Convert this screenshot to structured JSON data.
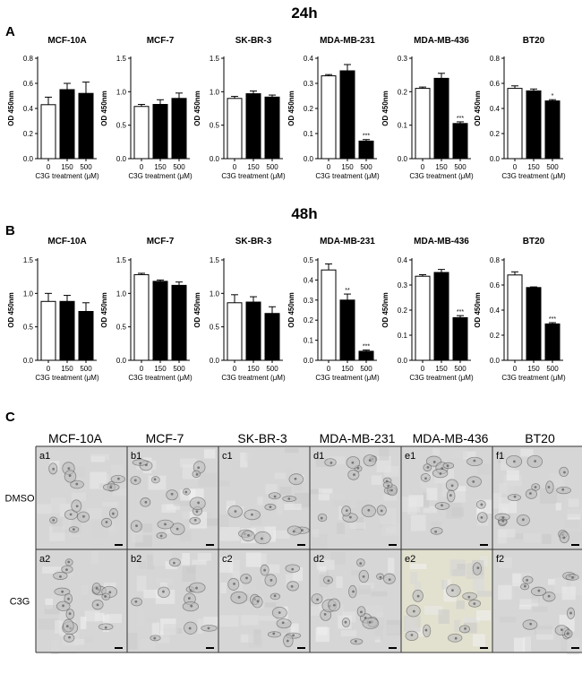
{
  "panels": {
    "A": {
      "letter": "A",
      "timepoint": "24h"
    },
    "B": {
      "letter": "B",
      "timepoint": "48h"
    },
    "C": {
      "letter": "C",
      "columns": [
        "MCF-10A",
        "MCF-7",
        "SK-BR-3",
        "MDA-MB-231",
        "MDA-MB-436",
        "BT20"
      ],
      "rows": [
        "DMSO",
        "C3G"
      ],
      "cell_labels": [
        [
          "a1",
          "b1",
          "c1",
          "d1",
          "e1",
          "f1"
        ],
        [
          "a2",
          "b2",
          "c2",
          "d2",
          "e2",
          "f2"
        ]
      ]
    }
  },
  "chart_data": [
    {
      "type": "bar",
      "panel": "A",
      "title": "MCF-10A",
      "categories": [
        "0",
        "150",
        "500"
      ],
      "values": [
        0.43,
        0.55,
        0.52
      ],
      "errors": [
        0.06,
        0.05,
        0.09
      ],
      "significance": [
        "",
        "",
        ""
      ],
      "ylabel": "OD 450nm",
      "xlabel": "C3G treatment (μM)",
      "ylim": [
        0,
        0.8
      ],
      "yticks": [
        "0.0",
        "0.2",
        "0.4",
        "0.6",
        "0.8"
      ]
    },
    {
      "type": "bar",
      "panel": "A",
      "title": "MCF-7",
      "categories": [
        "0",
        "150",
        "500"
      ],
      "values": [
        0.78,
        0.81,
        0.9
      ],
      "errors": [
        0.03,
        0.07,
        0.08
      ],
      "significance": [
        "",
        "",
        ""
      ],
      "ylabel": "OD 450nm",
      "xlabel": "C3G treatment (μM)",
      "ylim": [
        0,
        1.5
      ],
      "yticks": [
        "0.0",
        "0.5",
        "1.0",
        "1.5"
      ]
    },
    {
      "type": "bar",
      "panel": "A",
      "title": "SK-BR-3",
      "categories": [
        "0",
        "150",
        "500"
      ],
      "values": [
        0.9,
        0.97,
        0.92
      ],
      "errors": [
        0.03,
        0.04,
        0.03
      ],
      "significance": [
        "",
        "",
        ""
      ],
      "ylabel": "OD 450nm",
      "xlabel": "C3G treatment (μM)",
      "ylim": [
        0,
        1.5
      ],
      "yticks": [
        "0.0",
        "0.5",
        "1.0",
        "1.5"
      ]
    },
    {
      "type": "bar",
      "panel": "A",
      "title": "MDA-MB-231",
      "categories": [
        "0",
        "150",
        "500"
      ],
      "values": [
        0.33,
        0.35,
        0.07
      ],
      "errors": [
        0.005,
        0.025,
        0.006
      ],
      "significance": [
        "",
        "",
        "***"
      ],
      "ylabel": "OD 450nm",
      "xlabel": "C3G treatment (μM)",
      "ylim": [
        0,
        0.4
      ],
      "yticks": [
        "0.0",
        "0.1",
        "0.2",
        "0.3",
        "0.4"
      ]
    },
    {
      "type": "bar",
      "panel": "A",
      "title": "MDA-MB-436",
      "categories": [
        "0",
        "150",
        "500"
      ],
      "values": [
        0.21,
        0.24,
        0.105
      ],
      "errors": [
        0.004,
        0.015,
        0.005
      ],
      "significance": [
        "",
        "",
        "***"
      ],
      "ylabel": "OD 450nm",
      "xlabel": "C3G treatment (μM)",
      "ylim": [
        0,
        0.3
      ],
      "yticks": [
        "0.0",
        "0.1",
        "0.2",
        "0.3"
      ]
    },
    {
      "type": "bar",
      "panel": "A",
      "title": "BT20",
      "categories": [
        "0",
        "150",
        "500"
      ],
      "values": [
        0.56,
        0.54,
        0.46
      ],
      "errors": [
        0.02,
        0.015,
        0.01
      ],
      "significance": [
        "",
        "",
        "*"
      ],
      "ylabel": "OD 450nm",
      "xlabel": "C3G treatment (μM)",
      "ylim": [
        0,
        0.8
      ],
      "yticks": [
        "0.0",
        "0.2",
        "0.4",
        "0.6",
        "0.8"
      ]
    },
    {
      "type": "bar",
      "panel": "B",
      "title": "MCF-10A",
      "categories": [
        "0",
        "150",
        "500"
      ],
      "values": [
        0.88,
        0.88,
        0.73
      ],
      "errors": [
        0.12,
        0.09,
        0.13
      ],
      "significance": [
        "",
        "",
        ""
      ],
      "ylabel": "OD 450nm",
      "xlabel": "C3G treatment (μM)",
      "ylim": [
        0,
        1.5
      ],
      "yticks": [
        "0.0",
        "0.5",
        "1.0",
        "1.5"
      ]
    },
    {
      "type": "bar",
      "panel": "B",
      "title": "MCF-7",
      "categories": [
        "0",
        "150",
        "500"
      ],
      "values": [
        1.28,
        1.18,
        1.12
      ],
      "errors": [
        0.02,
        0.02,
        0.05
      ],
      "significance": [
        "",
        "",
        ""
      ],
      "ylabel": "OD 450nm",
      "xlabel": "C3G treatment (μM)",
      "ylim": [
        0,
        1.5
      ],
      "yticks": [
        "0.0",
        "0.5",
        "1.0",
        "1.5"
      ]
    },
    {
      "type": "bar",
      "panel": "B",
      "title": "SK-BR-3",
      "categories": [
        "0",
        "150",
        "500"
      ],
      "values": [
        0.86,
        0.87,
        0.7
      ],
      "errors": [
        0.12,
        0.08,
        0.1
      ],
      "significance": [
        "",
        "",
        ""
      ],
      "ylabel": "OD 450nm",
      "xlabel": "C3G treatment (μM)",
      "ylim": [
        0,
        1.5
      ],
      "yticks": [
        "0.0",
        "0.5",
        "1.0",
        "1.5"
      ]
    },
    {
      "type": "bar",
      "panel": "B",
      "title": "MDA-MB-231",
      "categories": [
        "0",
        "150",
        "500"
      ],
      "values": [
        0.45,
        0.3,
        0.045
      ],
      "errors": [
        0.03,
        0.03,
        0.006
      ],
      "significance": [
        "",
        "**",
        "***"
      ],
      "ylabel": "OD 450nm",
      "xlabel": "C3G treatment (μM)",
      "ylim": [
        0,
        0.5
      ],
      "yticks": [
        "0.0",
        "0.1",
        "0.2",
        "0.3",
        "0.4",
        "0.5"
      ]
    },
    {
      "type": "bar",
      "panel": "B",
      "title": "MDA-MB-436",
      "categories": [
        "0",
        "150",
        "500"
      ],
      "values": [
        0.335,
        0.35,
        0.17
      ],
      "errors": [
        0.006,
        0.012,
        0.008
      ],
      "significance": [
        "",
        "",
        "***"
      ],
      "ylabel": "OD 450nm",
      "xlabel": "C3G treatment (μM)",
      "ylim": [
        0,
        0.4
      ],
      "yticks": [
        "0.0",
        "0.1",
        "0.2",
        "0.3",
        "0.4"
      ]
    },
    {
      "type": "bar",
      "panel": "B",
      "title": "BT20",
      "categories": [
        "0",
        "150",
        "500"
      ],
      "values": [
        0.68,
        0.58,
        0.29
      ],
      "errors": [
        0.025,
        0.005,
        0.01
      ],
      "significance": [
        "",
        "",
        "***"
      ],
      "ylabel": "OD 450nm",
      "xlabel": "C3G treatment (μM)",
      "ylim": [
        0,
        0.8
      ],
      "yticks": [
        "0.0",
        "0.2",
        "0.4",
        "0.6",
        "0.8"
      ]
    }
  ],
  "colors": {
    "control_bar": "#ffffff",
    "treated_bar": "#000000",
    "axis": "#000000",
    "micrograph_base": "#d6d6d6",
    "micrograph_e2": "#e2e0cf",
    "grid_border": "#333333"
  }
}
